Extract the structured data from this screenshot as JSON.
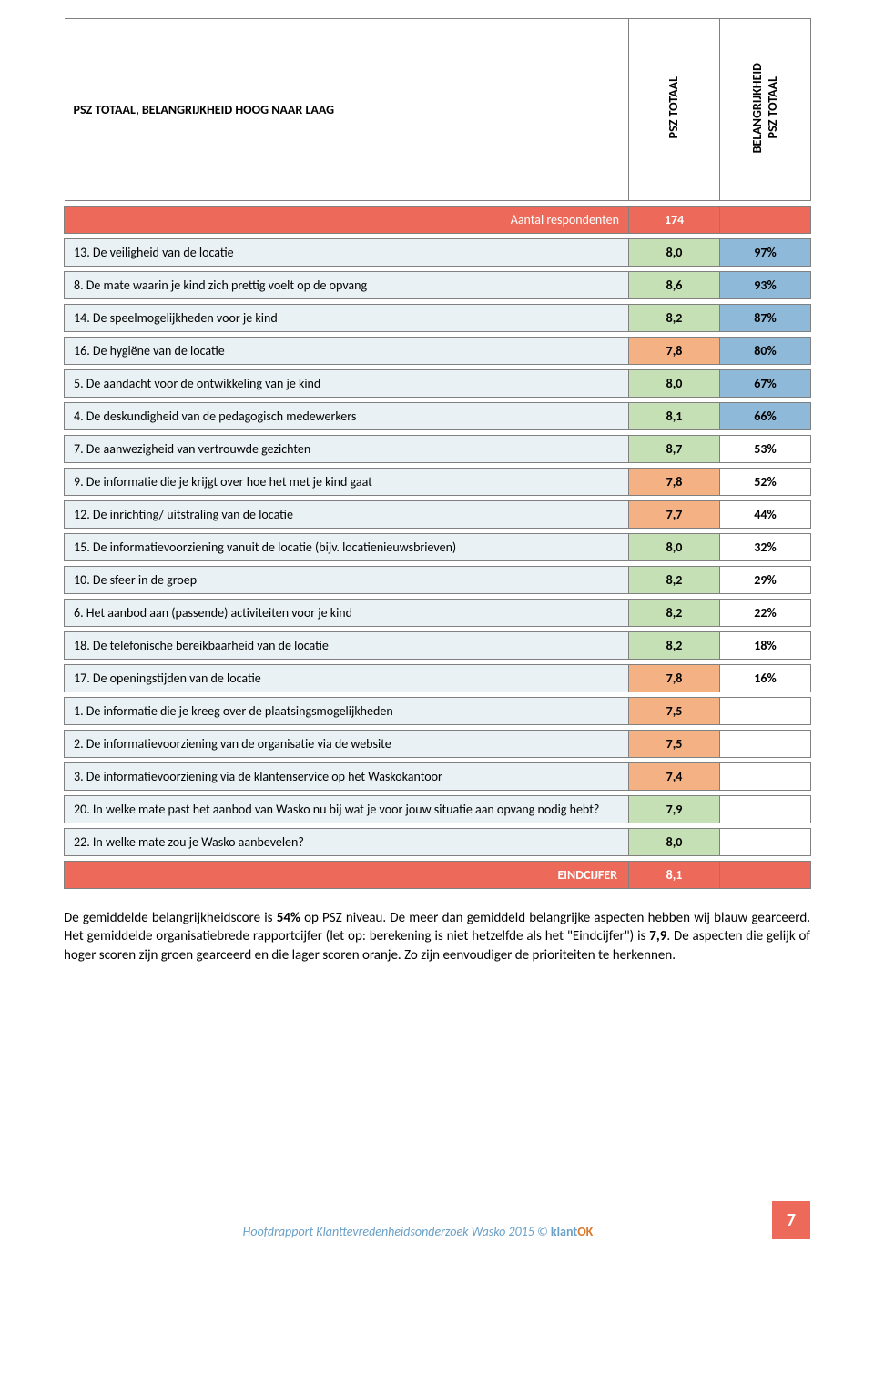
{
  "colors": {
    "coral": "#ed6a5a",
    "ltblue": "#e9f1f4",
    "blue": "#8fb9d8",
    "green": "#c5e0b4",
    "orange": "#f4b183",
    "white": "#ffffff",
    "border": "#808080",
    "footer_link": "#6aa0c7",
    "footer_ok": "#d87a2a"
  },
  "header": {
    "title": "PSZ TOTAAL, BELANGRIJKHEID HOOG NAAR LAAG",
    "col_score": "PSZ TOTAAL",
    "col_imp_line1": "BELANGRIJKHEID",
    "col_imp_line2": "PSZ TOTAAL"
  },
  "respondent_row": {
    "label": "Aantal respondenten",
    "value": "174"
  },
  "rows": [
    {
      "label": "13. De veiligheid van de locatie",
      "score": "8,0",
      "score_bg": "green",
      "imp": "97%",
      "imp_bg": "blue"
    },
    {
      "label": "8. De mate waarin je kind zich prettig voelt op de opvang",
      "score": "8,6",
      "score_bg": "green",
      "imp": "93%",
      "imp_bg": "blue"
    },
    {
      "label": "14. De speelmogelijkheden voor je kind",
      "score": "8,2",
      "score_bg": "green",
      "imp": "87%",
      "imp_bg": "blue"
    },
    {
      "label": "16. De hygiëne van de locatie",
      "score": "7,8",
      "score_bg": "orange",
      "imp": "80%",
      "imp_bg": "blue"
    },
    {
      "label": "5. De aandacht voor de ontwikkeling van je kind",
      "score": "8,0",
      "score_bg": "green",
      "imp": "67%",
      "imp_bg": "blue"
    },
    {
      "label": "4. De deskundigheid van de pedagogisch medewerkers",
      "score": "8,1",
      "score_bg": "green",
      "imp": "66%",
      "imp_bg": "blue"
    },
    {
      "label": "7. De aanwezigheid van vertrouwde gezichten",
      "score": "8,7",
      "score_bg": "green",
      "imp": "53%",
      "imp_bg": "white"
    },
    {
      "label": "9. De informatie die je krijgt over hoe het met je kind gaat",
      "score": "7,8",
      "score_bg": "orange",
      "imp": "52%",
      "imp_bg": "white"
    },
    {
      "label": "12. De inrichting/ uitstraling van de locatie",
      "score": "7,7",
      "score_bg": "orange",
      "imp": "44%",
      "imp_bg": "white"
    },
    {
      "label": "15. De informatievoorziening vanuit de locatie (bijv. locatienieuwsbrieven)",
      "score": "8,0",
      "score_bg": "green",
      "imp": "32%",
      "imp_bg": "white"
    },
    {
      "label": "10. De sfeer in de groep",
      "score": "8,2",
      "score_bg": "green",
      "imp": "29%",
      "imp_bg": "white"
    },
    {
      "label": "6. Het aanbod aan (passende) activiteiten voor je kind",
      "score": "8,2",
      "score_bg": "green",
      "imp": "22%",
      "imp_bg": "white"
    },
    {
      "label": "18. De telefonische bereikbaarheid van de locatie",
      "score": "8,2",
      "score_bg": "green",
      "imp": "18%",
      "imp_bg": "white"
    },
    {
      "label": "17. De openingstijden van de locatie",
      "score": "7,8",
      "score_bg": "orange",
      "imp": "16%",
      "imp_bg": "white"
    },
    {
      "label": "1. De informatie die je kreeg over de plaatsingsmogelijkheden",
      "score": "7,5",
      "score_bg": "orange",
      "imp": "",
      "imp_bg": "white"
    },
    {
      "label": "2. De informatievoorziening van de organisatie via de website",
      "score": "7,5",
      "score_bg": "orange",
      "imp": "",
      "imp_bg": "white"
    },
    {
      "label": "3. De informatievoorziening via de klantenservice op het Waskokantoor",
      "score": "7,4",
      "score_bg": "orange",
      "imp": "",
      "imp_bg": "white"
    },
    {
      "label": "20. In welke mate past het aanbod van Wasko nu bij wat je voor jouw situatie aan opvang nodig hebt?",
      "score": "7,9",
      "score_bg": "green",
      "imp": "",
      "imp_bg": "white"
    },
    {
      "label": "22. In welke mate zou je Wasko aanbevelen?",
      "score": "8,0",
      "score_bg": "green",
      "imp": "",
      "imp_bg": "white"
    }
  ],
  "eind": {
    "label": "EINDCIJFER",
    "value": "8,1"
  },
  "paragraph": {
    "p1a": "De gemiddelde belangrijkheidscore is ",
    "p1b": "54%",
    "p1c": " op PSZ niveau. De meer dan gemiddeld belangrijke aspecten hebben wij blauw gearceerd. Het gemiddelde organisatiebrede rapportcijfer (let op: berekening is niet hetzelfde als het \"Eindcijfer\") is ",
    "p1d": "7,9",
    "p1e": ". De aspecten die gelijk of hoger scoren zijn groen gearceerd en die lager scoren oranje. Zo zijn eenvoudiger de prioriteiten te herkennen."
  },
  "footer": {
    "text_prefix": "Hoofdrapport Klanttevredenheidsonderzoek Wasko 2015 © ",
    "brand_k": "klant",
    "brand_ok": "OK",
    "page_number": "7"
  }
}
